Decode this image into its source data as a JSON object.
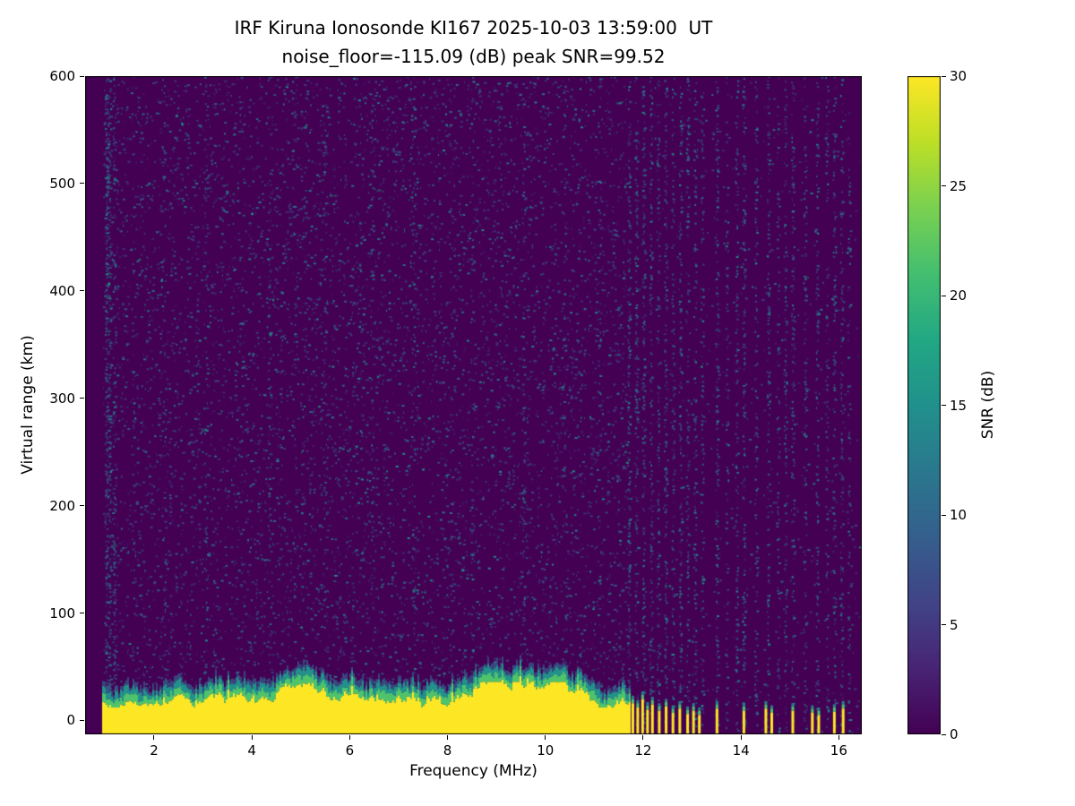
{
  "title": {
    "line1": "IRF Kiruna Ionosonde KI167 2025-10-03 13:59:00  UT",
    "line2": "noise_floor=-115.09 (dB) peak SNR=99.52"
  },
  "axes": {
    "xlabel": "Frequency (MHz)",
    "ylabel": "Virtual range (km)",
    "x_ticks": [
      2,
      4,
      6,
      8,
      10,
      12,
      14,
      16
    ],
    "y_ticks": [
      0,
      100,
      200,
      300,
      400,
      500,
      600
    ],
    "x_range": [
      0.59,
      16.47
    ],
    "y_range": [
      -13,
      600
    ]
  },
  "colorbar": {
    "label": "SNR (dB)",
    "ticks": [
      0,
      5,
      10,
      15,
      20,
      25,
      30
    ],
    "range": [
      0,
      30
    ],
    "colormap": "viridis",
    "colormap_stops": [
      "#440154",
      "#482475",
      "#414487",
      "#355f8d",
      "#2a788e",
      "#21918c",
      "#22a884",
      "#44bf70",
      "#7ad151",
      "#bddf26",
      "#fde725"
    ]
  },
  "chart_data": {
    "type": "heatmap",
    "title": "IRF Kiruna Ionosonde KI167 2025-10-03 13:59:00  UT",
    "subtitle": "noise_floor=-115.09 (dB) peak SNR=99.52",
    "station": "KI167",
    "timestamp_ut": "2025-10-03 13:59:00",
    "noise_floor_db": -115.09,
    "peak_snr_db": 99.52,
    "xlabel": "Frequency (MHz)",
    "ylabel": "Virtual range (km)",
    "x_range_mhz": [
      0.59,
      16.47
    ],
    "y_range_km": [
      -13,
      600
    ],
    "snr_range_db": [
      0,
      30
    ],
    "colormap": "viridis",
    "legend_position": "right-colorbar",
    "grid": false,
    "background_snr_db": 0,
    "background_color": "#440154",
    "speckle_snr_db": [
      4,
      12
    ],
    "speckle_count": 11000,
    "freq_min": 0.95,
    "freq_max": 16.42,
    "quiet_above_mhz": 11.65,
    "quiet_keep": 0.15,
    "speckle_colors": [
      "#3d4c8a",
      "#33628d",
      "#2c718e",
      "#25858e",
      "#1f958b"
    ],
    "band_colors": {
      "yellow": "#fde725",
      "green": "#4ec36c",
      "teal": "#21918c",
      "blue": "#33628d"
    },
    "ground_echo_band": {
      "freq_start_mhz": 0.95,
      "freq_end_mhz": 11.72,
      "snr_db": 30,
      "yellow_top_mean_km": 22,
      "yellow_top_min_km": 12,
      "yellow_top_max_km": 36
    },
    "echo_columns": [
      [
        11.78,
        16
      ],
      [
        11.88,
        12
      ],
      [
        11.98,
        20
      ],
      [
        12.08,
        10
      ],
      [
        12.18,
        15
      ],
      [
        12.32,
        9
      ],
      [
        12.46,
        13
      ],
      [
        12.6,
        7
      ],
      [
        12.74,
        11
      ],
      [
        12.9,
        6
      ],
      [
        13.02,
        9
      ],
      [
        13.14,
        5
      ],
      [
        13.5,
        11
      ],
      [
        14.05,
        9
      ],
      [
        14.5,
        11
      ],
      [
        14.62,
        7
      ],
      [
        15.05,
        9
      ],
      [
        15.45,
        7
      ],
      [
        15.58,
        5
      ],
      [
        15.9,
        8
      ],
      [
        16.08,
        11
      ]
    ],
    "noise_stripes": [
      [
        1.02,
        260
      ],
      [
        1.08,
        200
      ],
      [
        1.18,
        120
      ],
      [
        2.2,
        60
      ],
      [
        3.05,
        55
      ],
      [
        4.35,
        70
      ],
      [
        5.5,
        55
      ],
      [
        6.45,
        60
      ],
      [
        7.3,
        70
      ],
      [
        8.5,
        55
      ],
      [
        9.55,
        60
      ],
      [
        10.4,
        55
      ],
      [
        11.1,
        50
      ],
      [
        11.7,
        200
      ],
      [
        11.85,
        170
      ],
      [
        12.0,
        190
      ],
      [
        12.15,
        160
      ],
      [
        12.3,
        150
      ],
      [
        12.45,
        170
      ],
      [
        12.6,
        140
      ],
      [
        12.75,
        160
      ],
      [
        12.9,
        130
      ],
      [
        13.05,
        150
      ],
      [
        13.2,
        120
      ],
      [
        13.5,
        160
      ],
      [
        13.7,
        90
      ],
      [
        13.9,
        140
      ],
      [
        14.05,
        160
      ],
      [
        14.3,
        130
      ],
      [
        14.55,
        150
      ],
      [
        14.75,
        100
      ],
      [
        14.9,
        130
      ],
      [
        15.05,
        150
      ],
      [
        15.3,
        120
      ],
      [
        15.55,
        140
      ],
      [
        15.75,
        100
      ],
      [
        15.9,
        130
      ],
      [
        16.05,
        140
      ],
      [
        16.2,
        90
      ]
    ]
  }
}
